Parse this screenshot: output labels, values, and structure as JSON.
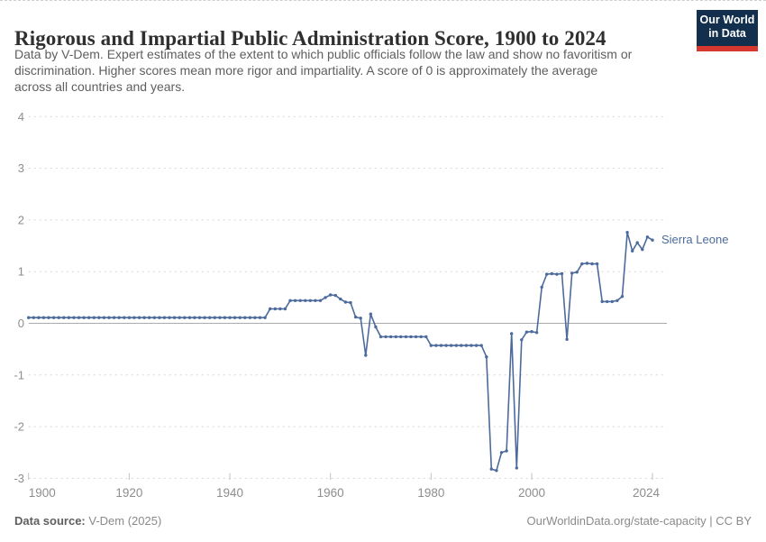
{
  "header": {
    "title": "Rigorous and Impartial Public Administration Score, 1900 to 2024",
    "subtitle_lines": [
      "Data by V-Dem. Expert estimates of the extent to which public officials follow the law and show no favoritism or",
      "discrimination. Higher scores mean more rigor and impartiality. A score of 0 is approximately the average",
      "across all countries and years."
    ],
    "logo": {
      "line1": "Our World",
      "line2": "in Data"
    }
  },
  "footer": {
    "source_label": "Data source:",
    "source_value": " V-Dem (2025)",
    "credit": "OurWorldinData.org/state-capacity | CC BY"
  },
  "colors": {
    "line": "#4C6A9C",
    "grid": "#d6d6d6",
    "zero_line": "#ababab",
    "tick_label": "#8e8e8e",
    "logo_bg": "#12304E",
    "logo_accent": "#D6382F"
  },
  "chart_data": {
    "type": "line",
    "title": "Rigorous and Impartial Public Administration Score, 1900 to 2024",
    "xlabel": "",
    "ylabel": "",
    "x_start": 1900,
    "x_end": 2024,
    "x_ticks": [
      1900,
      1920,
      1940,
      1960,
      1980,
      2000,
      2024
    ],
    "y_ticks": [
      4,
      3,
      2,
      1,
      0,
      -1,
      -2,
      -3
    ],
    "ylim": [
      -3,
      4
    ],
    "grid": "horizontal-dashed",
    "zero_line": true,
    "legend_position": "end-of-line-label",
    "end_label": "Sierra Leone",
    "series": [
      {
        "name": "Sierra Leone",
        "color": "#4C6A9C",
        "values": [
          0.11,
          0.11,
          0.11,
          0.11,
          0.11,
          0.11,
          0.11,
          0.11,
          0.11,
          0.11,
          0.11,
          0.11,
          0.11,
          0.11,
          0.11,
          0.11,
          0.11,
          0.11,
          0.11,
          0.11,
          0.11,
          0.11,
          0.11,
          0.11,
          0.11,
          0.11,
          0.11,
          0.11,
          0.11,
          0.11,
          0.11,
          0.11,
          0.11,
          0.11,
          0.11,
          0.11,
          0.11,
          0.11,
          0.11,
          0.11,
          0.11,
          0.11,
          0.11,
          0.11,
          0.11,
          0.11,
          0.11,
          0.11,
          0.28,
          0.28,
          0.28,
          0.28,
          0.44,
          0.44,
          0.44,
          0.44,
          0.44,
          0.44,
          0.44,
          0.5,
          0.55,
          0.54,
          0.47,
          0.41,
          0.4,
          0.12,
          0.1,
          -0.62,
          0.18,
          -0.07,
          -0.26,
          -0.26,
          -0.26,
          -0.26,
          -0.26,
          -0.26,
          -0.26,
          -0.26,
          -0.26,
          -0.26,
          -0.43,
          -0.43,
          -0.43,
          -0.43,
          -0.43,
          -0.43,
          -0.43,
          -0.43,
          -0.43,
          -0.43,
          -0.43,
          -0.65,
          -2.82,
          -2.85,
          -2.5,
          -2.47,
          -0.2,
          -2.8,
          -0.32,
          -0.17,
          -0.16,
          -0.18,
          0.7,
          0.95,
          0.96,
          0.95,
          0.96,
          -0.31,
          0.97,
          0.99,
          1.15,
          1.16,
          1.15,
          1.15,
          0.42,
          0.42,
          0.42,
          0.44,
          0.52,
          1.76,
          1.4,
          1.56,
          1.43,
          1.67,
          1.61
        ]
      }
    ]
  }
}
